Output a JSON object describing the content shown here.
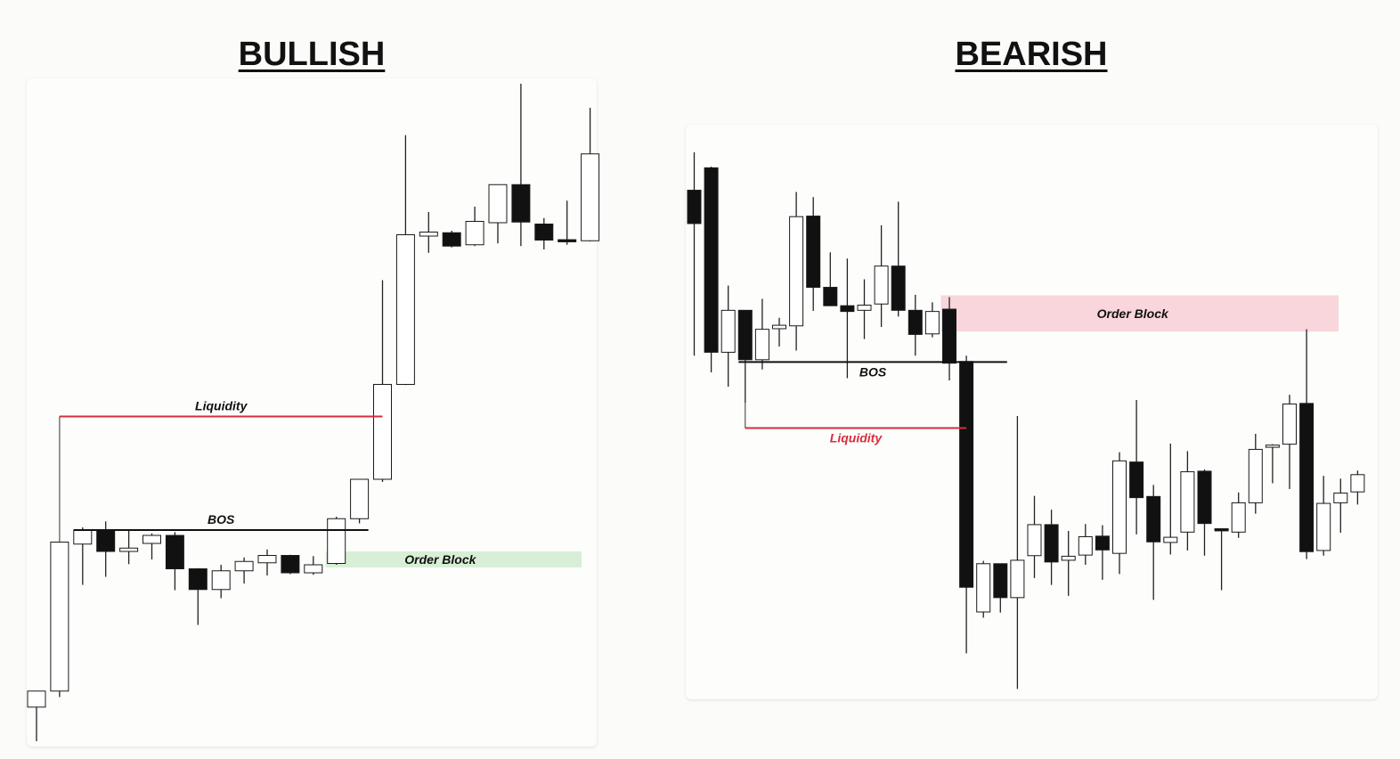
{
  "headings": {
    "bullish": "BULLISH",
    "bearish": "BEARISH"
  },
  "colors": {
    "candle_down": "#111111",
    "candle_up": "#ffffff",
    "wick": "#222222",
    "liquidity": "#d62d3c",
    "bos": "#111111",
    "order_block_bull": "#d8efd5",
    "order_block_bear": "#f8d6db"
  },
  "chart_data": [
    {
      "type": "candlestick",
      "title": "BULLISH",
      "ylim": [
        0,
        100
      ],
      "candles": [
        {
          "o": 5.9,
          "h": 8.1,
          "l": 0.8,
          "c": 8.3
        },
        {
          "o": 8.3,
          "h": 30.5,
          "l": 7.4,
          "c": 30.6
        },
        {
          "o": 30.3,
          "h": 32.8,
          "l": 24.2,
          "c": 32.4
        },
        {
          "o": 32.4,
          "h": 33.7,
          "l": 25.4,
          "c": 29.2
        },
        {
          "o": 29.2,
          "h": 32.3,
          "l": 27.3,
          "c": 29.7
        },
        {
          "o": 30.4,
          "h": 31.9,
          "l": 28.0,
          "c": 31.6
        },
        {
          "o": 31.6,
          "h": 32.1,
          "l": 23.4,
          "c": 26.6
        },
        {
          "o": 26.6,
          "h": 26.7,
          "l": 18.2,
          "c": 23.5
        },
        {
          "o": 23.5,
          "h": 27.2,
          "l": 22.2,
          "c": 26.3
        },
        {
          "o": 26.3,
          "h": 28.3,
          "l": 24.4,
          "c": 27.7
        },
        {
          "o": 27.5,
          "h": 29.5,
          "l": 25.6,
          "c": 28.6
        },
        {
          "o": 28.6,
          "h": 28.7,
          "l": 25.8,
          "c": 26.0
        },
        {
          "o": 26.0,
          "h": 28.5,
          "l": 25.7,
          "c": 27.2
        },
        {
          "o": 27.4,
          "h": 34.4,
          "l": 27.2,
          "c": 34.1
        },
        {
          "o": 34.1,
          "h": 39.9,
          "l": 33.4,
          "c": 40.0
        },
        {
          "o": 40.0,
          "h": 69.8,
          "l": 39.6,
          "c": 54.2
        },
        {
          "o": 54.2,
          "h": 91.5,
          "l": 54.1,
          "c": 76.6
        },
        {
          "o": 76.4,
          "h": 80.0,
          "l": 73.9,
          "c": 77.0
        },
        {
          "o": 76.9,
          "h": 77.2,
          "l": 74.7,
          "c": 74.9
        },
        {
          "o": 75.1,
          "h": 80.8,
          "l": 74.9,
          "c": 78.6
        },
        {
          "o": 78.4,
          "h": 84.1,
          "l": 75.3,
          "c": 84.1
        },
        {
          "o": 84.1,
          "h": 99.2,
          "l": 74.9,
          "c": 78.5
        },
        {
          "o": 78.2,
          "h": 79.1,
          "l": 74.4,
          "c": 75.8
        },
        {
          "o": 75.8,
          "h": 81.7,
          "l": 75.1,
          "c": 75.6
        },
        {
          "o": 75.7,
          "h": 95.6,
          "l": 75.6,
          "c": 88.7
        }
      ],
      "annotations": [
        {
          "type": "liquidity",
          "label": "Liquidity",
          "y": 49.4,
          "from": 1,
          "to": 15
        },
        {
          "type": "bos",
          "label": "BOS",
          "y": 32.4,
          "from": 2,
          "to": 14
        },
        {
          "type": "order_block",
          "label": "Order Block",
          "ylim": [
            26.8,
            29.2
          ],
          "from": 13
        }
      ]
    },
    {
      "type": "candlestick",
      "title": "BEARISH",
      "ylim": [
        0,
        100
      ],
      "candles": [
        {
          "o": 88.6,
          "h": 95.2,
          "l": 59.8,
          "c": 82.8
        },
        {
          "o": 92.5,
          "h": 92.7,
          "l": 56.9,
          "c": 60.4
        },
        {
          "o": 60.4,
          "h": 72.0,
          "l": 54.4,
          "c": 67.7
        },
        {
          "o": 67.7,
          "h": 67.7,
          "l": 51.6,
          "c": 59.1
        },
        {
          "o": 59.1,
          "h": 69.7,
          "l": 57.4,
          "c": 64.4
        },
        {
          "o": 64.5,
          "h": 66.4,
          "l": 61.4,
          "c": 65.1
        },
        {
          "o": 65.0,
          "h": 88.3,
          "l": 60.7,
          "c": 84.0
        },
        {
          "o": 84.1,
          "h": 87.4,
          "l": 67.6,
          "c": 71.7
        },
        {
          "o": 71.7,
          "h": 77.8,
          "l": 68.5,
          "c": 68.5
        },
        {
          "o": 68.5,
          "h": 76.7,
          "l": 55.9,
          "c": 67.5
        },
        {
          "o": 67.7,
          "h": 73.1,
          "l": 62.7,
          "c": 68.6
        },
        {
          "o": 68.8,
          "h": 82.5,
          "l": 64.8,
          "c": 75.4
        },
        {
          "o": 75.4,
          "h": 86.6,
          "l": 66.6,
          "c": 67.7
        },
        {
          "o": 67.7,
          "h": 70.4,
          "l": 59.8,
          "c": 63.5
        },
        {
          "o": 63.6,
          "h": 69.1,
          "l": 63.0,
          "c": 67.5
        },
        {
          "o": 67.9,
          "h": 70.0,
          "l": 55.5,
          "c": 58.5
        },
        {
          "o": 58.8,
          "h": 59.8,
          "l": 8.0,
          "c": 19.5
        },
        {
          "o": 15.2,
          "h": 24.1,
          "l": 14.2,
          "c": 23.6
        },
        {
          "o": 23.6,
          "h": 23.6,
          "l": 15.1,
          "c": 17.7
        },
        {
          "o": 17.7,
          "h": 49.3,
          "l": 1.8,
          "c": 24.2
        },
        {
          "o": 25.0,
          "h": 35.4,
          "l": 21.1,
          "c": 30.4
        },
        {
          "o": 30.4,
          "h": 33.0,
          "l": 19.9,
          "c": 23.9
        },
        {
          "o": 24.2,
          "h": 29.3,
          "l": 18.0,
          "c": 24.9
        },
        {
          "o": 25.1,
          "h": 30.5,
          "l": 23.4,
          "c": 28.3
        },
        {
          "o": 28.4,
          "h": 30.3,
          "l": 20.8,
          "c": 26.0
        },
        {
          "o": 25.4,
          "h": 43.0,
          "l": 21.8,
          "c": 41.5
        },
        {
          "o": 41.3,
          "h": 52.1,
          "l": 28.7,
          "c": 35.1
        },
        {
          "o": 35.3,
          "h": 37.3,
          "l": 17.3,
          "c": 27.4
        },
        {
          "o": 27.3,
          "h": 44.5,
          "l": 25.2,
          "c": 28.2
        },
        {
          "o": 29.1,
          "h": 43.2,
          "l": 25.9,
          "c": 39.6
        },
        {
          "o": 39.7,
          "h": 40.0,
          "l": 25.0,
          "c": 30.6
        },
        {
          "o": 29.6,
          "h": 29.7,
          "l": 19.0,
          "c": 29.4
        },
        {
          "o": 29.1,
          "h": 36.0,
          "l": 28.1,
          "c": 34.2
        },
        {
          "o": 34.2,
          "h": 46.2,
          "l": 32.3,
          "c": 43.5
        },
        {
          "o": 43.9,
          "h": 44.4,
          "l": 37.6,
          "c": 44.2
        },
        {
          "o": 44.4,
          "h": 53.0,
          "l": 36.6,
          "c": 51.4
        },
        {
          "o": 51.5,
          "h": 64.4,
          "l": 24.4,
          "c": 25.7
        },
        {
          "o": 25.9,
          "h": 38.9,
          "l": 25.0,
          "c": 34.1
        },
        {
          "o": 34.2,
          "h": 38.4,
          "l": 29.0,
          "c": 35.9
        },
        {
          "o": 36.1,
          "h": 39.8,
          "l": 33.9,
          "c": 39.1
        }
      ],
      "annotations": [
        {
          "type": "order_block",
          "label": "Order Block",
          "ylim": [
            64.0,
            70.3
          ],
          "from": 15
        },
        {
          "type": "bos",
          "label": "BOS",
          "y": 58.7,
          "from": 3,
          "to": 18
        },
        {
          "type": "liquidity",
          "label": "Liquidity",
          "y": 47.2,
          "from": 3,
          "to": 16
        }
      ]
    }
  ]
}
